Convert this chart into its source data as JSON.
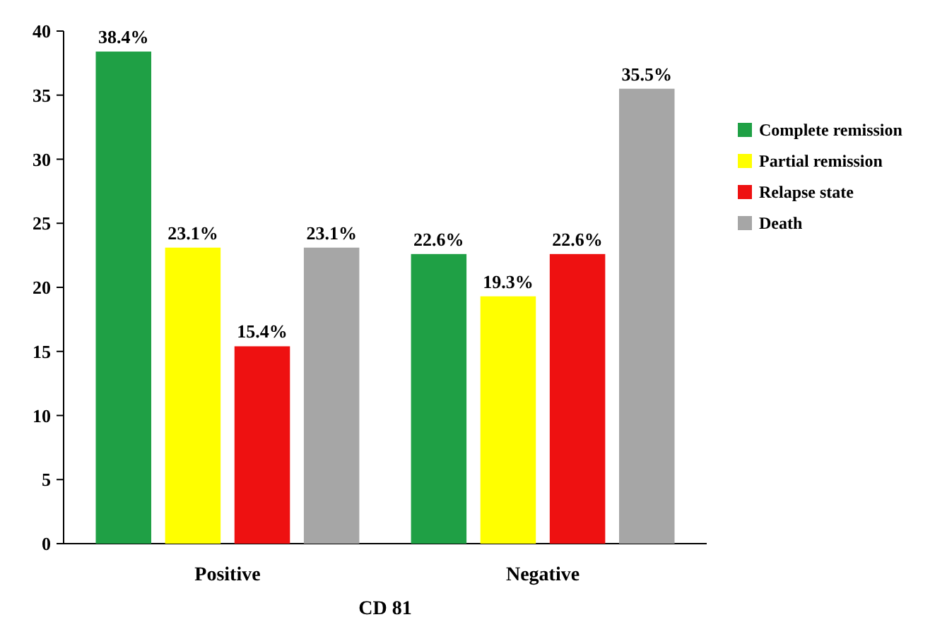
{
  "chart_data": {
    "type": "bar",
    "xlabel": "CD 81",
    "categories": [
      "Positive",
      "Negative"
    ],
    "series": [
      {
        "name": "Complete remission",
        "color": "#1fa045",
        "values": [
          38.4,
          22.6
        ],
        "value_labels": [
          "38.4%",
          "22.6%"
        ]
      },
      {
        "name": "Partial remission",
        "color": "#ffff00",
        "values": [
          23.1,
          19.3
        ],
        "value_labels": [
          "23.1%",
          "19.3%"
        ]
      },
      {
        "name": "Relapse state",
        "color": "#ee1111",
        "values": [
          15.4,
          22.6
        ],
        "value_labels": [
          "15.4%",
          "22.6%"
        ]
      },
      {
        "name": "Death",
        "color": "#a6a6a6",
        "values": [
          23.1,
          35.5
        ],
        "value_labels": [
          "23.1%",
          "35.5%"
        ]
      }
    ],
    "ylim": [
      0,
      40
    ],
    "yticks": [
      0,
      5,
      10,
      15,
      20,
      25,
      30,
      35,
      40
    ],
    "grid": false,
    "legend": "right"
  }
}
